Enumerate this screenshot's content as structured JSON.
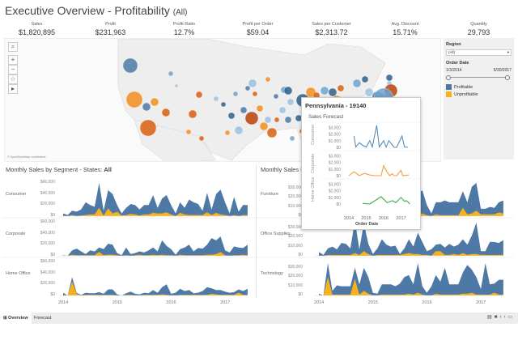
{
  "header": {
    "title": "Executive Overview - Profitability",
    "filter": "(All)"
  },
  "kpis": [
    {
      "label": "Sales",
      "value": "$1,820,895"
    },
    {
      "label": "Profit",
      "value": "$231,963"
    },
    {
      "label": "Profit Ratio",
      "value": "12.7%"
    },
    {
      "label": "Profit per Order",
      "value": "$59.04"
    },
    {
      "label": "Sales per Customer",
      "value": "$2,313.72"
    },
    {
      "label": "Avg. Discount",
      "value": "15.71%"
    },
    {
      "label": "Quantity",
      "value": "29,793"
    }
  ],
  "map": {
    "attribution": "© OpenStreetMap contributors",
    "controls": [
      "search-icon",
      "zoom-in-icon",
      "zoom-out-icon",
      "pin-icon",
      "play-icon"
    ],
    "controls_text": [
      "⌕",
      "+",
      "−",
      "☆",
      "▸"
    ]
  },
  "filters": {
    "region_label": "Region",
    "region_value": "(All)",
    "date_label": "Order Date",
    "date_start": "1/3/2014",
    "date_end": "6/30/2017",
    "date_range_fraction": [
      0,
      1
    ]
  },
  "legend": [
    {
      "label": "Profitable",
      "color": "#4e79a7"
    },
    {
      "label": "Unprofitable",
      "color": "#f5b21b"
    }
  ],
  "segment_chart": {
    "title": "Monthly Sales by Segment - States: ",
    "title_bold": "All",
    "yticks": [
      "$60,000",
      "$40,000",
      "$20,000",
      "$0"
    ],
    "ytick_values": [
      60000,
      40000,
      20000,
      0
    ],
    "ymax": 60000,
    "xticks": [
      "2014",
      "2015",
      "2016",
      "2017"
    ],
    "rows": [
      {
        "label": "Consumer",
        "profitable": [
          5000,
          2000,
          8000,
          8000,
          11000,
          23000,
          17000,
          14000,
          45000,
          9000,
          33000,
          35000,
          12000,
          4000,
          13000,
          18000,
          17000,
          11000,
          17000,
          17000,
          32000,
          10000,
          27000,
          31000,
          17000,
          5000,
          19000,
          12000,
          28000,
          23000,
          20000,
          8000,
          35000,
          10000,
          34000,
          45000,
          23000,
          5000,
          33000,
          8000,
          18000,
          18000
        ],
        "unprofitable": [
          0,
          0,
          2000,
          0,
          1000,
          2000,
          3000,
          3000,
          15000,
          1000,
          14000,
          5000,
          8000,
          1000,
          2000,
          4000,
          3000,
          1000,
          3000,
          3000,
          6000,
          5000,
          5000,
          7000,
          3000,
          0,
          6000,
          3000,
          2000,
          2000,
          2000,
          2000,
          7000,
          2000,
          6000,
          3000,
          2000,
          0,
          2000,
          0,
          2000,
          2000
        ]
      },
      {
        "label": "Corporate",
        "profitable": [
          1000,
          0,
          8000,
          12000,
          7000,
          2000,
          9000,
          7000,
          8000,
          11000,
          20000,
          18000,
          4000,
          1000,
          14000,
          3000,
          4000,
          6000,
          5000,
          9000,
          13000,
          7000,
          26000,
          17000,
          11000,
          2000,
          10000,
          14000,
          19000,
          7000,
          13000,
          12000,
          18000,
          30000,
          25000,
          28000,
          9000,
          6000,
          16000,
          14000,
          12000,
          19000
        ],
        "unprofitable": [
          0,
          0,
          2000,
          1000,
          1000,
          1000,
          1000,
          1000,
          7000,
          1000,
          2000,
          2000,
          1000,
          0,
          1000,
          0,
          1000,
          2000,
          1000,
          1000,
          2000,
          1000,
          2000,
          1000,
          1000,
          0,
          2000,
          1000,
          1000,
          1000,
          1000,
          1000,
          2000,
          2000,
          3000,
          7000,
          1000,
          0,
          1000,
          1000,
          2000,
          1000
        ]
      },
      {
        "label": "Home Office",
        "profitable": [
          5000,
          0,
          8000,
          2000,
          1000,
          4000,
          3000,
          3000,
          5000,
          2000,
          10000,
          10000,
          2000,
          0,
          3000,
          6000,
          3000,
          2000,
          4000,
          3000,
          9000,
          4000,
          13000,
          19000,
          3000,
          5000,
          11000,
          7000,
          9000,
          3000,
          4000,
          7000,
          14000,
          10000,
          8000,
          9000,
          6000,
          4000,
          5000,
          6000,
          7000,
          11000
        ],
        "unprofitable": [
          0,
          0,
          25000,
          3000,
          0,
          1000,
          1000,
          1000,
          1000,
          1000,
          1000,
          1000,
          0,
          0,
          1000,
          1000,
          0,
          0,
          1000,
          1000,
          1000,
          1000,
          2000,
          1000,
          0,
          0,
          1000,
          1000,
          1000,
          1000,
          1000,
          1000,
          1000,
          3000,
          2000,
          1000,
          1000,
          1000,
          1000,
          5000,
          1000,
          1000
        ]
      }
    ]
  },
  "category_chart": {
    "title": "Monthly Sales b",
    "yticks": [
      "$30,000",
      "$20,000",
      "$10,000",
      "$0"
    ],
    "ytick_values": [
      30000,
      20000,
      10000,
      0
    ],
    "ymax": 36000,
    "xticks": [
      "2014",
      "2015",
      "2016",
      "2017"
    ],
    "rows": [
      {
        "label": "Furniture",
        "profitable": [
          2000,
          1000,
          7000,
          9000,
          6000,
          11000,
          10000,
          12000,
          17000,
          4000,
          22000,
          20000,
          4000,
          1000,
          11000,
          14000,
          9000,
          7000,
          11000,
          11000,
          20000,
          9000,
          23000,
          25000,
          11000,
          3000,
          13000,
          14000,
          16000,
          14000,
          14000,
          14000,
          18000,
          13000,
          29000,
          30000,
          6000,
          6000,
          8000,
          7000,
          11000,
          14000
        ],
        "unprofitable": [
          0,
          0,
          1000,
          1000,
          1000,
          1000,
          1000,
          1000,
          3000,
          1000,
          3000,
          2000,
          1000,
          0,
          1000,
          1000,
          1000,
          1000,
          1000,
          1000,
          2000,
          1000,
          2000,
          3000,
          1000,
          0,
          2000,
          1000,
          1000,
          1000,
          1000,
          1000,
          9000,
          2000,
          3000,
          6000,
          2000,
          2000,
          2000,
          2000,
          4000,
          3000
        ]
      },
      {
        "label": "Office Supplies",
        "profitable": [
          4000,
          1000,
          7000,
          9000,
          6000,
          13000,
          12000,
          7000,
          35000,
          6000,
          30000,
          11000,
          2000,
          7000,
          17000,
          11000,
          9000,
          10000,
          1000,
          6000,
          15000,
          8000,
          23000,
          14000,
          4000,
          7000,
          7000,
          8000,
          8000,
          12000,
          8000,
          11000,
          15000,
          11000,
          20000,
          34000,
          4000,
          4000,
          14000,
          14000,
          13000,
          16000
        ],
        "unprofitable": [
          0,
          0,
          1000,
          1000,
          1000,
          1000,
          1000,
          1000,
          3000,
          1000,
          5000,
          2000,
          0,
          1000,
          1000,
          1000,
          1000,
          1000,
          1000,
          2000,
          3000,
          2000,
          2000,
          1000,
          1000,
          0,
          5000,
          5000,
          1000,
          1000,
          2000,
          1000,
          3000,
          1000,
          2000,
          2000,
          1000,
          1000,
          1000,
          1000,
          1000,
          1000
        ]
      },
      {
        "label": "Technology",
        "profitable": [
          1000,
          0,
          15000,
          4000,
          10000,
          9000,
          9000,
          9000,
          12000,
          11000,
          25000,
          18000,
          3000,
          2000,
          11000,
          11000,
          11000,
          9000,
          12000,
          19000,
          20000,
          11000,
          32000,
          9000,
          3000,
          10000,
          20000,
          14000,
          29000,
          11000,
          11000,
          11000,
          23000,
          31000,
          25000,
          19000,
          6000,
          34000,
          11000,
          10000,
          16000,
          16000
        ],
        "unprofitable": [
          1000,
          0,
          20000,
          1000,
          1000,
          1000,
          1000,
          1000,
          18000,
          1000,
          5000,
          2000,
          0,
          0,
          1000,
          1000,
          1000,
          1000,
          1000,
          1000,
          2000,
          1000,
          3000,
          1000,
          0,
          0,
          2000,
          1000,
          1000,
          1000,
          1000,
          1000,
          2000,
          2000,
          3000,
          1000,
          1000,
          1000,
          1000,
          3000,
          1000,
          1000
        ]
      }
    ]
  },
  "tooltip": {
    "title": "Pennsylvania - 19140",
    "subtitle": "Sales Forecast",
    "yticks": [
      "$3,000",
      "$2,000",
      "$1,000",
      "$0"
    ],
    "xticks": [
      "2014",
      "2015",
      "2016",
      "2017"
    ],
    "xlabel": "Order Date",
    "rows": [
      {
        "label": "Consumer",
        "color": "#5b8db5",
        "x": [
          2014.3,
          2014.4,
          2014.6,
          2014.8,
          2015.0,
          2015.2,
          2015.35,
          2015.6,
          2015.75,
          2016.0,
          2016.15,
          2016.3,
          2016.6,
          2016.75,
          2017.05,
          2017.2,
          2017.4
        ],
        "y": [
          1700,
          50,
          700,
          300,
          50,
          1000,
          50,
          3300,
          50,
          1000,
          50,
          1000,
          0,
          0,
          1700,
          50,
          0
        ]
      },
      {
        "label": "Corporate",
        "color": "#f0a03c",
        "x": [
          2014.0,
          2014.3,
          2014.6,
          2014.9,
          2015.2,
          2015.5,
          2015.85,
          2016.0,
          2016.2,
          2016.35,
          2016.5,
          2016.6,
          2016.75,
          2017.0,
          2017.1,
          2017.25,
          2017.45
        ],
        "y": [
          0,
          600,
          0,
          350,
          100,
          0,
          0,
          1500,
          500,
          0,
          300,
          0,
          0,
          800,
          0,
          50,
          100
        ]
      },
      {
        "label": "Home Office",
        "color": "#3fae49",
        "x": [
          2014.8,
          2015.2,
          2015.5,
          2015.85,
          2016.2,
          2016.5,
          2016.7,
          2017.0,
          2017.2,
          2017.3,
          2017.4,
          2017.5
        ],
        "y": [
          100,
          0,
          500,
          1100,
          200,
          500,
          200,
          1000,
          400,
          500,
          300,
          0
        ]
      }
    ]
  },
  "tabs": [
    {
      "label": "Overview",
      "active": true
    },
    {
      "label": "Forecast",
      "active": false
    }
  ]
}
